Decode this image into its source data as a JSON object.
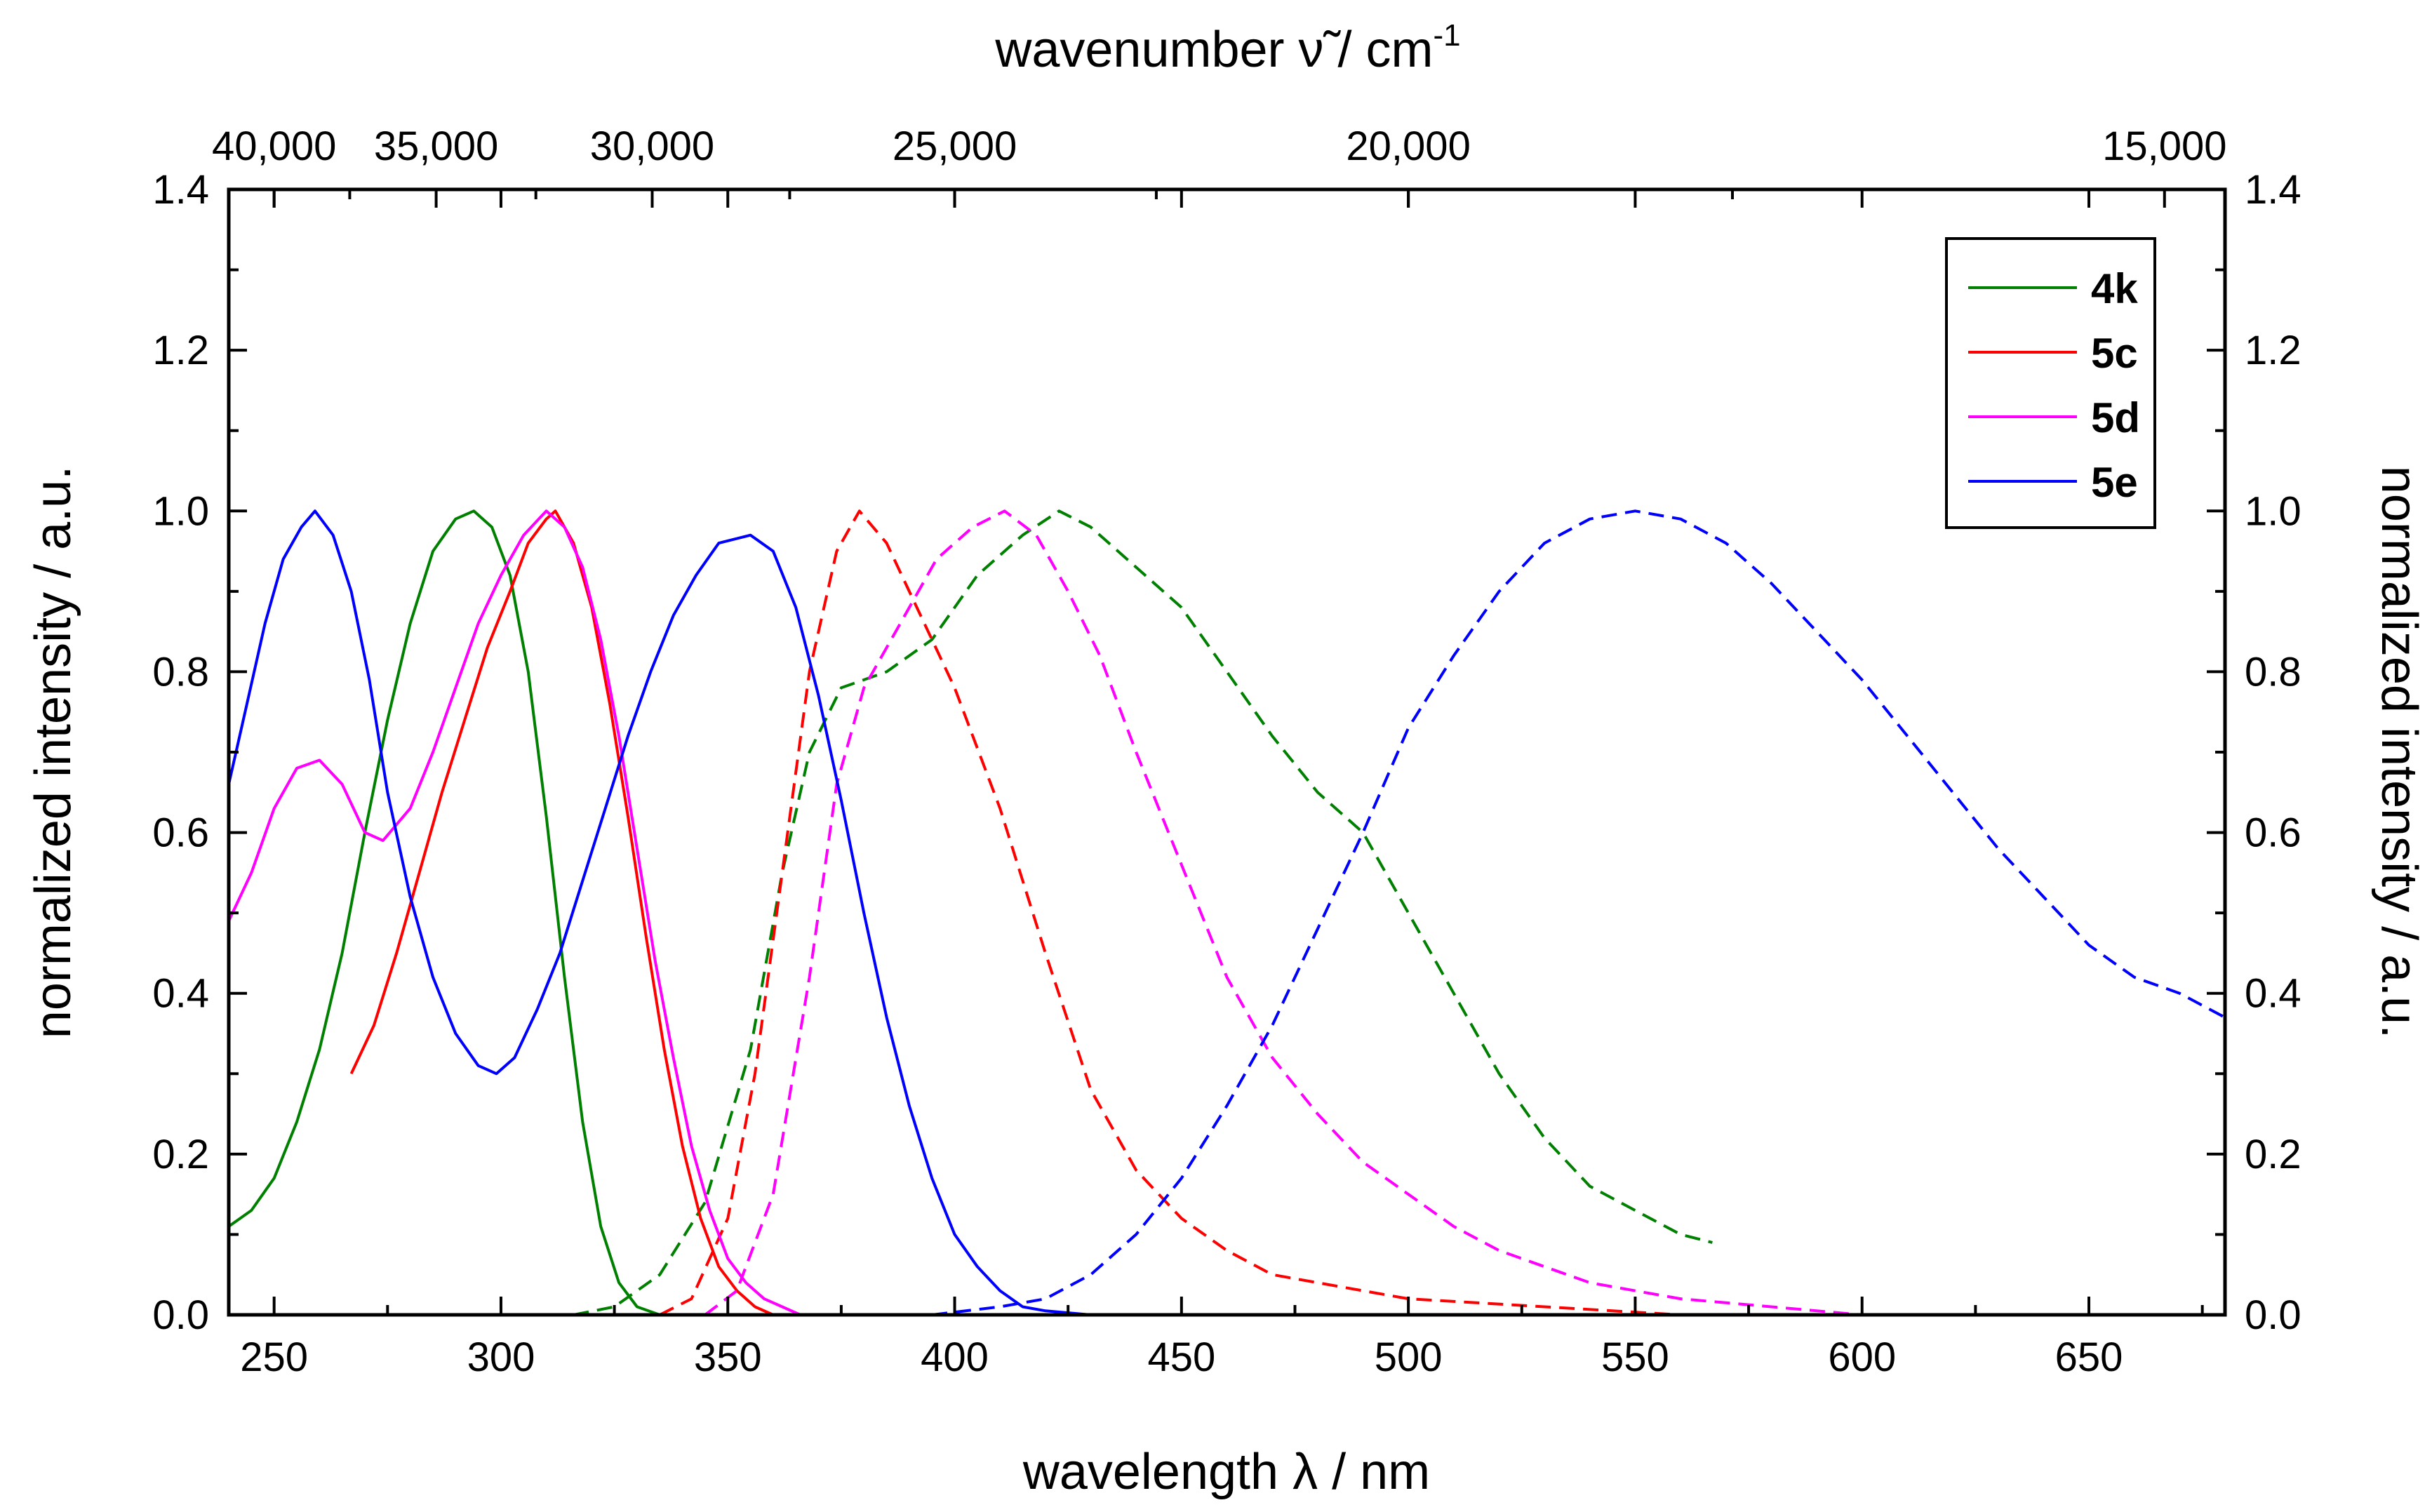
{
  "chart_data": {
    "type": "line",
    "title": "",
    "xlabel": "wavelength λ / nm",
    "ylabel": "normalized intensity / a.u.",
    "y2label": "normalized intensity / a.u.",
    "x2label_main": "wavenumber ν̃ / cm",
    "x2label_sup": "-1",
    "xlim": [
      240,
      680
    ],
    "ylim": [
      0,
      1.4
    ],
    "xticks": [
      250,
      300,
      350,
      400,
      450,
      500,
      550,
      600,
      650
    ],
    "xtick_labels": [
      "250",
      "300",
      "350",
      "400",
      "450",
      "500",
      "550",
      "600",
      "650"
    ],
    "yticks": [
      0,
      0.2,
      0.4,
      0.6,
      0.8,
      1.0,
      1.2,
      1.4
    ],
    "ytick_labels": [
      "0.0",
      "0.2",
      "0.4",
      "0.6",
      "0.8",
      "1.0",
      "1.2",
      "1.4"
    ],
    "top_axis_ticks_cm": [
      40000,
      35000,
      30000,
      25000,
      20000,
      15000
    ],
    "top_axis_labels": [
      "40,000",
      "35,000",
      "30,000",
      "25,000",
      "20,000",
      "15,000"
    ],
    "legend_position": "top-right",
    "series": [
      {
        "name": "4k",
        "color": "#008000",
        "style": "solid",
        "kind": "absorption",
        "points": [
          [
            240,
            0.11
          ],
          [
            245,
            0.13
          ],
          [
            250,
            0.17
          ],
          [
            255,
            0.24
          ],
          [
            260,
            0.33
          ],
          [
            265,
            0.45
          ],
          [
            270,
            0.6
          ],
          [
            275,
            0.74
          ],
          [
            280,
            0.86
          ],
          [
            285,
            0.95
          ],
          [
            290,
            0.99
          ],
          [
            294,
            1.0
          ],
          [
            298,
            0.98
          ],
          [
            302,
            0.92
          ],
          [
            306,
            0.8
          ],
          [
            310,
            0.62
          ],
          [
            314,
            0.42
          ],
          [
            318,
            0.24
          ],
          [
            322,
            0.11
          ],
          [
            326,
            0.04
          ],
          [
            330,
            0.01
          ],
          [
            335,
            0.0
          ]
        ]
      },
      {
        "name": "4k",
        "color": "#008000",
        "style": "dashed",
        "kind": "emission",
        "points": [
          [
            316,
            0.0
          ],
          [
            325,
            0.01
          ],
          [
            335,
            0.05
          ],
          [
            345,
            0.14
          ],
          [
            355,
            0.33
          ],
          [
            362,
            0.55
          ],
          [
            368,
            0.7
          ],
          [
            375,
            0.78
          ],
          [
            385,
            0.8
          ],
          [
            395,
            0.84
          ],
          [
            405,
            0.92
          ],
          [
            415,
            0.97
          ],
          [
            423,
            1.0
          ],
          [
            430,
            0.98
          ],
          [
            440,
            0.93
          ],
          [
            450,
            0.88
          ],
          [
            460,
            0.8
          ],
          [
            470,
            0.72
          ],
          [
            480,
            0.65
          ],
          [
            490,
            0.6
          ],
          [
            500,
            0.5
          ],
          [
            510,
            0.4
          ],
          [
            520,
            0.3
          ],
          [
            530,
            0.22
          ],
          [
            540,
            0.16
          ],
          [
            550,
            0.13
          ],
          [
            560,
            0.1
          ],
          [
            567,
            0.09
          ]
        ]
      },
      {
        "name": "5c",
        "color": "#ff0000",
        "style": "solid",
        "kind": "absorption",
        "points": [
          [
            267,
            0.3
          ],
          [
            272,
            0.36
          ],
          [
            277,
            0.45
          ],
          [
            282,
            0.55
          ],
          [
            287,
            0.65
          ],
          [
            292,
            0.74
          ],
          [
            297,
            0.83
          ],
          [
            302,
            0.9
          ],
          [
            306,
            0.96
          ],
          [
            310,
            0.99
          ],
          [
            312,
            1.0
          ],
          [
            316,
            0.96
          ],
          [
            320,
            0.88
          ],
          [
            324,
            0.76
          ],
          [
            328,
            0.62
          ],
          [
            332,
            0.47
          ],
          [
            336,
            0.33
          ],
          [
            340,
            0.21
          ],
          [
            344,
            0.12
          ],
          [
            348,
            0.06
          ],
          [
            352,
            0.03
          ],
          [
            356,
            0.01
          ],
          [
            360,
            0.0
          ],
          [
            380,
            0.0
          ],
          [
            600,
            0.0
          ]
        ]
      },
      {
        "name": "5c",
        "color": "#ff0000",
        "style": "dashed",
        "kind": "emission",
        "points": [
          [
            335,
            0.0
          ],
          [
            342,
            0.02
          ],
          [
            350,
            0.12
          ],
          [
            356,
            0.3
          ],
          [
            362,
            0.55
          ],
          [
            368,
            0.8
          ],
          [
            374,
            0.95
          ],
          [
            379,
            1.0
          ],
          [
            385,
            0.96
          ],
          [
            390,
            0.9
          ],
          [
            400,
            0.78
          ],
          [
            410,
            0.63
          ],
          [
            420,
            0.45
          ],
          [
            430,
            0.28
          ],
          [
            440,
            0.18
          ],
          [
            450,
            0.12
          ],
          [
            460,
            0.08
          ],
          [
            470,
            0.05
          ],
          [
            480,
            0.04
          ],
          [
            500,
            0.02
          ],
          [
            530,
            0.01
          ],
          [
            560,
            0.0
          ],
          [
            600,
            0.0
          ]
        ]
      },
      {
        "name": "5d",
        "color": "#ff00ff",
        "style": "solid",
        "kind": "absorption",
        "points": [
          [
            240,
            0.49
          ],
          [
            245,
            0.55
          ],
          [
            250,
            0.63
          ],
          [
            255,
            0.68
          ],
          [
            260,
            0.69
          ],
          [
            265,
            0.66
          ],
          [
            270,
            0.6
          ],
          [
            274,
            0.59
          ],
          [
            280,
            0.63
          ],
          [
            285,
            0.7
          ],
          [
            290,
            0.78
          ],
          [
            295,
            0.86
          ],
          [
            300,
            0.92
          ],
          [
            305,
            0.97
          ],
          [
            310,
            1.0
          ],
          [
            314,
            0.98
          ],
          [
            318,
            0.93
          ],
          [
            322,
            0.84
          ],
          [
            326,
            0.72
          ],
          [
            330,
            0.58
          ],
          [
            334,
            0.44
          ],
          [
            338,
            0.32
          ],
          [
            342,
            0.21
          ],
          [
            346,
            0.13
          ],
          [
            350,
            0.07
          ],
          [
            354,
            0.04
          ],
          [
            358,
            0.02
          ],
          [
            362,
            0.01
          ],
          [
            366,
            0.0
          ],
          [
            400,
            0.0
          ]
        ]
      },
      {
        "name": "5d",
        "color": "#ff00ff",
        "style": "dashed",
        "kind": "emission",
        "points": [
          [
            345,
            0.0
          ],
          [
            352,
            0.03
          ],
          [
            360,
            0.15
          ],
          [
            368,
            0.42
          ],
          [
            374,
            0.66
          ],
          [
            380,
            0.78
          ],
          [
            388,
            0.86
          ],
          [
            396,
            0.94
          ],
          [
            404,
            0.98
          ],
          [
            411,
            1.0
          ],
          [
            418,
            0.97
          ],
          [
            425,
            0.9
          ],
          [
            432,
            0.82
          ],
          [
            440,
            0.7
          ],
          [
            450,
            0.56
          ],
          [
            460,
            0.42
          ],
          [
            470,
            0.32
          ],
          [
            480,
            0.25
          ],
          [
            490,
            0.19
          ],
          [
            500,
            0.15
          ],
          [
            510,
            0.11
          ],
          [
            520,
            0.08
          ],
          [
            530,
            0.06
          ],
          [
            540,
            0.04
          ],
          [
            560,
            0.02
          ],
          [
            580,
            0.01
          ],
          [
            600,
            0.0
          ]
        ]
      },
      {
        "name": "5e",
        "color": "#0000ff",
        "style": "solid",
        "kind": "absorption",
        "points": [
          [
            240,
            0.66
          ],
          [
            244,
            0.76
          ],
          [
            248,
            0.86
          ],
          [
            252,
            0.94
          ],
          [
            256,
            0.98
          ],
          [
            259,
            1.0
          ],
          [
            263,
            0.97
          ],
          [
            267,
            0.9
          ],
          [
            271,
            0.79
          ],
          [
            275,
            0.65
          ],
          [
            280,
            0.52
          ],
          [
            285,
            0.42
          ],
          [
            290,
            0.35
          ],
          [
            295,
            0.31
          ],
          [
            299,
            0.3
          ],
          [
            303,
            0.32
          ],
          [
            308,
            0.38
          ],
          [
            313,
            0.45
          ],
          [
            318,
            0.54
          ],
          [
            323,
            0.63
          ],
          [
            328,
            0.72
          ],
          [
            333,
            0.8
          ],
          [
            338,
            0.87
          ],
          [
            343,
            0.92
          ],
          [
            348,
            0.96
          ],
          [
            355,
            0.97
          ],
          [
            360,
            0.95
          ],
          [
            365,
            0.88
          ],
          [
            370,
            0.77
          ],
          [
            375,
            0.64
          ],
          [
            380,
            0.5
          ],
          [
            385,
            0.37
          ],
          [
            390,
            0.26
          ],
          [
            395,
            0.17
          ],
          [
            400,
            0.1
          ],
          [
            405,
            0.06
          ],
          [
            410,
            0.03
          ],
          [
            415,
            0.01
          ],
          [
            420,
            0.005
          ],
          [
            430,
            0.0
          ],
          [
            600,
            0.0
          ]
        ]
      },
      {
        "name": "5e",
        "color": "#0000ff",
        "style": "dashed",
        "kind": "emission",
        "points": [
          [
            395,
            0.0
          ],
          [
            410,
            0.01
          ],
          [
            420,
            0.02
          ],
          [
            430,
            0.05
          ],
          [
            440,
            0.1
          ],
          [
            450,
            0.17
          ],
          [
            460,
            0.26
          ],
          [
            470,
            0.36
          ],
          [
            480,
            0.48
          ],
          [
            490,
            0.6
          ],
          [
            500,
            0.73
          ],
          [
            510,
            0.82
          ],
          [
            520,
            0.9
          ],
          [
            530,
            0.96
          ],
          [
            540,
            0.99
          ],
          [
            550,
            1.0
          ],
          [
            560,
            0.99
          ],
          [
            570,
            0.96
          ],
          [
            580,
            0.91
          ],
          [
            590,
            0.85
          ],
          [
            600,
            0.79
          ],
          [
            610,
            0.72
          ],
          [
            620,
            0.65
          ],
          [
            630,
            0.58
          ],
          [
            640,
            0.52
          ],
          [
            650,
            0.46
          ],
          [
            660,
            0.42
          ],
          [
            670,
            0.4
          ],
          [
            680,
            0.37
          ]
        ]
      }
    ],
    "legend": [
      {
        "label": "4k",
        "color": "#008000"
      },
      {
        "label": "5c",
        "color": "#ff0000"
      },
      {
        "label": "5d",
        "color": "#ff00ff"
      },
      {
        "label": "5e",
        "color": "#0000ff"
      }
    ]
  }
}
